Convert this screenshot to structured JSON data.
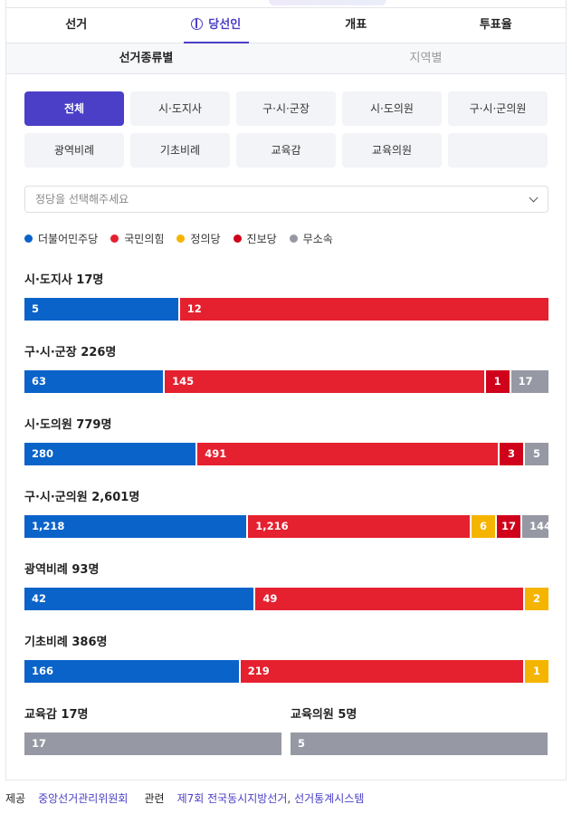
{
  "main_tabs": [
    {
      "label": "선거",
      "active": false
    },
    {
      "label": "당선인",
      "active": true
    },
    {
      "label": "개표",
      "active": false
    },
    {
      "label": "투표율",
      "active": false
    }
  ],
  "sub_tabs": [
    {
      "label": "선거종류별",
      "active": true
    },
    {
      "label": "지역별",
      "active": false
    }
  ],
  "election_types": [
    "전체",
    "시·도지사",
    "구·시·군장",
    "시·도의원",
    "구·시·군의원",
    "광역비례",
    "기초비례",
    "교육감",
    "교육의원",
    ""
  ],
  "party_select": {
    "placeholder": "정당을 선택해주세요"
  },
  "colors": {
    "democratic": "#0a63c9",
    "ppp": "#e5202f",
    "justice": "#f5b400",
    "progressive": "#d0021b",
    "independent": "#9698a3"
  },
  "legend": [
    {
      "label": "더불어민주당",
      "color": "#0a63c9"
    },
    {
      "label": "국민의힘",
      "color": "#e5202f"
    },
    {
      "label": "정의당",
      "color": "#f5b400"
    },
    {
      "label": "진보당",
      "color": "#d0021b"
    },
    {
      "label": "무소속",
      "color": "#9698a3"
    }
  ],
  "sections": [
    {
      "title": "시·도지사 17명",
      "segments": [
        {
          "party": "democratic",
          "label": "5",
          "value": 5
        },
        {
          "party": "ppp",
          "label": "12",
          "value": 12
        }
      ]
    },
    {
      "title": "구·시·군장 226명",
      "segments": [
        {
          "party": "democratic",
          "label": "63",
          "value": 63
        },
        {
          "party": "ppp",
          "label": "145",
          "value": 145
        },
        {
          "party": "progressive",
          "label": "1",
          "value": 1
        },
        {
          "party": "independent",
          "label": "17",
          "value": 17
        }
      ]
    },
    {
      "title": "시·도의원 779명",
      "segments": [
        {
          "party": "democratic",
          "label": "280",
          "value": 280
        },
        {
          "party": "ppp",
          "label": "491",
          "value": 491
        },
        {
          "party": "progressive",
          "label": "3",
          "value": 3
        },
        {
          "party": "independent",
          "label": "5",
          "value": 5
        }
      ]
    },
    {
      "title": "구·시·군의원 2,601명",
      "segments": [
        {
          "party": "democratic",
          "label": "1,218",
          "value": 1218
        },
        {
          "party": "ppp",
          "label": "1,216",
          "value": 1216
        },
        {
          "party": "justice",
          "label": "6",
          "value": 6
        },
        {
          "party": "progressive",
          "label": "17",
          "value": 17
        },
        {
          "party": "independent",
          "label": "144",
          "value": 144
        }
      ]
    },
    {
      "title": "광역비례 93명",
      "segments": [
        {
          "party": "democratic",
          "label": "42",
          "value": 42
        },
        {
          "party": "ppp",
          "label": "49",
          "value": 49
        },
        {
          "party": "justice",
          "label": "2",
          "value": 2
        }
      ]
    },
    {
      "title": "기초비례 386명",
      "segments": [
        {
          "party": "democratic",
          "label": "166",
          "value": 166
        },
        {
          "party": "ppp",
          "label": "219",
          "value": 219
        },
        {
          "party": "justice",
          "label": "1",
          "value": 1
        }
      ]
    }
  ],
  "half_sections": [
    {
      "title": "교육감 17명",
      "segments": [
        {
          "party": "independent",
          "label": "17",
          "value": 17
        }
      ]
    },
    {
      "title": "교육의원 5명",
      "segments": [
        {
          "party": "independent",
          "label": "5",
          "value": 5
        }
      ]
    }
  ],
  "footer": {
    "provider_label": "제공",
    "provider": "중앙선거관리위원회",
    "related_label": "관련",
    "related_link_1": "제7회 전국동시지방선거",
    "separator": ",",
    "related_link_2": "선거통계시스템"
  }
}
